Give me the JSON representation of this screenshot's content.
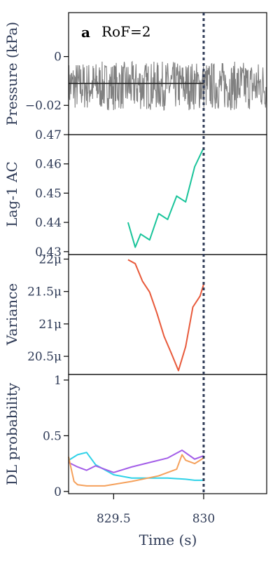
{
  "panel_letter": "a",
  "panel_title": "RoF=2",
  "shared_x": {
    "label": "Time (s)",
    "xlim": [
      829.25,
      830.35
    ],
    "ticks": [
      829.5,
      830
    ],
    "tick_labels": [
      "829.5",
      "830"
    ]
  },
  "transition_line": {
    "x": 830.0,
    "color": "#2f3b57",
    "style": "dotted"
  },
  "chart_data": [
    {
      "type": "line",
      "ylabel": "Pressure (kPa)",
      "ylim": [
        -0.032,
        0.018
      ],
      "yticks": [
        0,
        -0.02
      ],
      "ytick_labels": [
        "0",
        "−0.02"
      ],
      "series": [
        {
          "color": "#808080",
          "style": "noisy-band",
          "x_range": [
            829.25,
            830.35
          ],
          "mean": -0.012,
          "amplitude": 0.01
        },
        {
          "color": "#2b2b2b",
          "style": "solid",
          "x": [
            829.25,
            830.0
          ],
          "values": [
            -0.011,
            -0.011
          ]
        }
      ]
    },
    {
      "type": "line",
      "ylabel": "Lag-1 AC",
      "ylim": [
        0.429,
        0.47
      ],
      "yticks": [
        0.43,
        0.44,
        0.45,
        0.46,
        0.47
      ],
      "ytick_labels": [
        "0.43",
        "0.44",
        "0.45",
        "0.46",
        "0.47"
      ],
      "series": [
        {
          "color": "#19c49a",
          "x": [
            829.58,
            829.62,
            829.65,
            829.7,
            829.75,
            829.8,
            829.85,
            829.9,
            829.95,
            830.0
          ],
          "values": [
            0.44,
            0.4315,
            0.436,
            0.434,
            0.443,
            0.441,
            0.449,
            0.447,
            0.459,
            0.4655
          ]
        }
      ]
    },
    {
      "type": "line",
      "ylabel": "Variance",
      "ylim": [
        20.22,
        22.07
      ],
      "yticks": [
        20.5,
        21,
        21.5,
        22
      ],
      "ytick_labels": [
        "20.5μ",
        "21μ",
        "21.5μ",
        "22μ"
      ],
      "series": [
        {
          "color": "#e8593a",
          "x": [
            829.58,
            829.62,
            829.66,
            829.7,
            829.74,
            829.78,
            829.82,
            829.86,
            829.9,
            829.94,
            829.98,
            830.0
          ],
          "values": [
            21.99,
            21.93,
            21.66,
            21.49,
            21.17,
            20.81,
            20.55,
            20.28,
            20.65,
            21.26,
            21.43,
            21.61
          ]
        }
      ]
    },
    {
      "type": "line",
      "ylabel": "DL probability",
      "ylim": [
        -0.02,
        1.05
      ],
      "yticks": [
        0,
        0.5,
        1
      ],
      "ytick_labels": [
        "0",
        "0.5",
        "1"
      ],
      "series": [
        {
          "color": "#2fd2e8",
          "x": [
            829.25,
            829.3,
            829.35,
            829.4,
            829.5,
            829.6,
            829.7,
            829.8,
            829.9,
            829.95,
            830.0
          ],
          "values": [
            0.28,
            0.33,
            0.35,
            0.24,
            0.15,
            0.12,
            0.12,
            0.12,
            0.11,
            0.1,
            0.1
          ]
        },
        {
          "color": "#a35de8",
          "x": [
            829.25,
            829.3,
            829.35,
            829.4,
            829.5,
            829.6,
            829.7,
            829.8,
            829.88,
            829.95,
            830.0
          ],
          "values": [
            0.26,
            0.22,
            0.19,
            0.23,
            0.17,
            0.22,
            0.26,
            0.3,
            0.37,
            0.29,
            0.32
          ]
        },
        {
          "color": "#f5a15c",
          "x": [
            829.25,
            829.28,
            829.3,
            829.35,
            829.45,
            829.6,
            829.75,
            829.85,
            829.88,
            829.9,
            829.95,
            830.0
          ],
          "values": [
            0.31,
            0.09,
            0.06,
            0.05,
            0.05,
            0.09,
            0.14,
            0.2,
            0.33,
            0.28,
            0.25,
            0.3
          ]
        }
      ]
    }
  ]
}
